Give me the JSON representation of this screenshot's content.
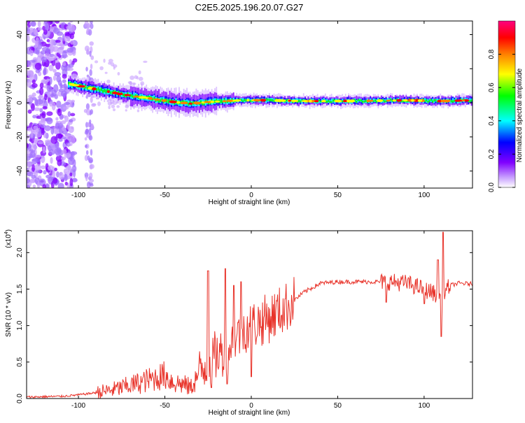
{
  "title": "C2E5.2025.196.20.07.G27",
  "chart_data": [
    {
      "type": "heatmap",
      "xlabel": "Height of straight line (km)",
      "ylabel": "Frequency (Hz)",
      "xlim": [
        -130,
        128
      ],
      "ylim": [
        -50,
        48
      ],
      "xticks": [
        -100,
        -50,
        0,
        50,
        100
      ],
      "yticks": [
        -40,
        -20,
        0,
        20,
        40
      ],
      "xtick_labels": [
        "-100",
        "-50",
        "0",
        "50",
        "100"
      ],
      "ytick_labels": [
        "-40",
        "-20",
        "0",
        "20",
        "40"
      ],
      "colorbar": {
        "label": "Normalized spectral amplitude",
        "range": [
          0,
          1
        ],
        "ticks": [
          0.0,
          0.2,
          0.4,
          0.6,
          0.8
        ],
        "tick_labels": [
          "0.0",
          "0.2",
          "0.4",
          "0.6",
          "0.8"
        ],
        "colors": [
          "#ffffff",
          "#c8a0ff",
          "#8000ff",
          "#0000ff",
          "#00ffff",
          "#00ff00",
          "#ffff00",
          "#ff8000",
          "#ff0000",
          "#ff0080"
        ]
      },
      "ridge": {
        "x": [
          -105,
          -95,
          -85,
          -75,
          -65,
          -55,
          -45,
          -35,
          -25,
          -15,
          -5,
          0,
          10,
          30,
          50,
          70,
          90,
          110,
          128
        ],
        "frequency": [
          11,
          9,
          7,
          5,
          3.5,
          2,
          0.5,
          -0.5,
          0.5,
          1,
          1.5,
          1.5,
          1.5,
          1,
          1,
          1.2,
          1.5,
          1,
          1.5
        ]
      }
    },
    {
      "type": "line",
      "xlabel": "Height of straight line (km)",
      "ylabel": "SNR (10 * v/v)",
      "multiplier_label": "(x10",
      "multiplier_exp": "4",
      "multiplier_close": ")",
      "xlim": [
        -130,
        128
      ],
      "ylim": [
        0,
        2.3
      ],
      "xticks": [
        -100,
        -50,
        0,
        50,
        100
      ],
      "yticks": [
        0.0,
        0.5,
        1.0,
        1.5,
        2.0
      ],
      "xtick_labels": [
        "-100",
        "-50",
        "0",
        "50",
        "100"
      ],
      "ytick_labels": [
        "0.0",
        "0.5",
        "1.0",
        "1.5",
        "2.0"
      ],
      "color": "#e8332a",
      "series": [
        {
          "x": [
            -130,
            -110,
            -100,
            -90,
            -80,
            -70,
            -60,
            -50,
            -45,
            -40,
            -35,
            -30,
            -25,
            -20,
            -15,
            -10,
            -5,
            0,
            10,
            20,
            30,
            40,
            50,
            60,
            70,
            80,
            90,
            100,
            105,
            110,
            115,
            120,
            128
          ],
          "y": [
            0.02,
            0.03,
            0.05,
            0.08,
            0.12,
            0.18,
            0.25,
            0.32,
            0.22,
            0.2,
            0.15,
            0.35,
            0.5,
            0.6,
            0.65,
            0.8,
            0.95,
            1.0,
            1.1,
            1.25,
            1.45,
            1.58,
            1.6,
            1.6,
            1.6,
            1.6,
            1.58,
            1.5,
            1.45,
            1.4,
            1.55,
            1.58,
            1.57
          ]
        }
      ],
      "spikes": [
        {
          "x": -25,
          "y": 1.75
        },
        {
          "x": -23,
          "y": 0.15
        },
        {
          "x": -15,
          "y": 1.78
        },
        {
          "x": -14,
          "y": 0.2
        },
        {
          "x": -10,
          "y": 1.55
        },
        {
          "x": -6,
          "y": 1.6
        },
        {
          "x": 0,
          "y": 0.3
        },
        {
          "x": 78,
          "y": 1.32
        },
        {
          "x": 100,
          "y": 1.3
        },
        {
          "x": 108,
          "y": 1.9
        },
        {
          "x": 110,
          "y": 0.85
        },
        {
          "x": 111,
          "y": 2.28
        }
      ]
    }
  ]
}
